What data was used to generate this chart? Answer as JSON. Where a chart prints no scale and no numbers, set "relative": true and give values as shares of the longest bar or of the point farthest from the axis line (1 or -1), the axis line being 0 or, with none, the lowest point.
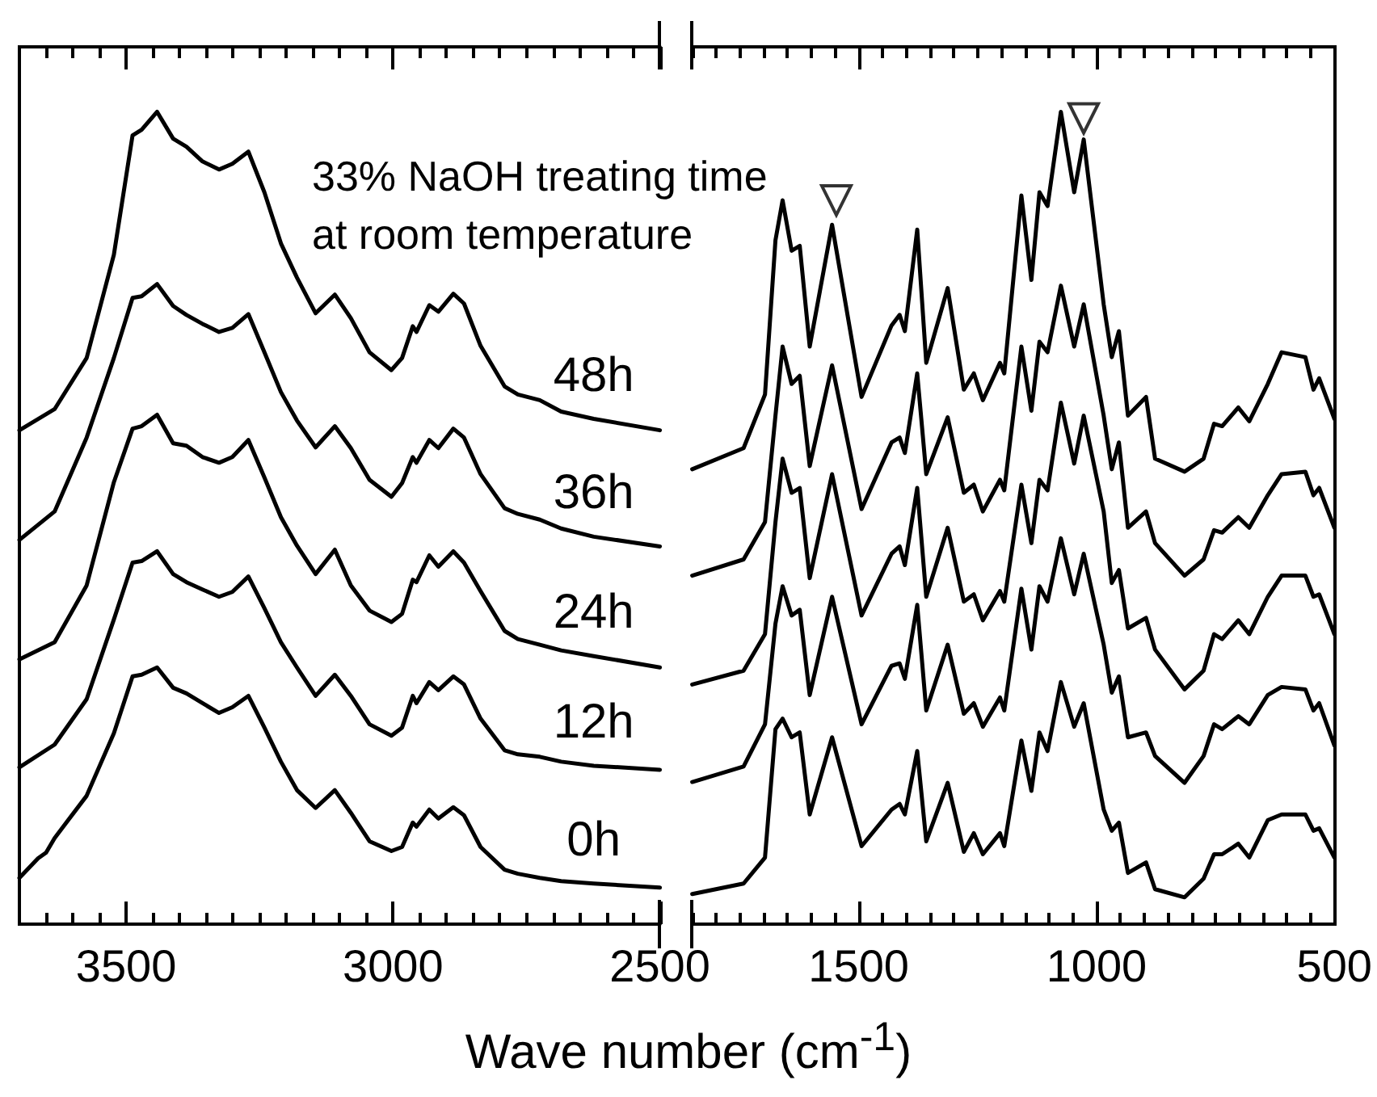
{
  "chart_data": [
    {
      "type": "line",
      "relative": true,
      "xlabel": "Wave number (cm$^{-1}$)",
      "annotations": [
        "33% NaOH treating time\nat room temperature"
      ],
      "xlim": [
        3700,
        2500
      ],
      "xticks": [
        3500,
        3000,
        2500
      ],
      "x": [
        3700,
        3634,
        3574,
        3523,
        3488,
        3471,
        3442,
        3412,
        3387,
        3357,
        3326,
        3301,
        3271,
        3241,
        3210,
        3180,
        3145,
        3109,
        3079,
        3044,
        3003,
        2983,
        2963,
        2956,
        2932,
        2915,
        2887,
        2867,
        2836,
        2791,
        2766,
        2725,
        2685,
        2624,
        2500
      ],
      "series": [
        {
          "name": "48h",
          "color": "#000000",
          "values": [
            0.608,
            0.634,
            0.697,
            0.824,
            0.971,
            0.978,
            1,
            0.967,
            0.957,
            0.939,
            0.929,
            0.936,
            0.951,
            0.901,
            0.838,
            0.796,
            0.752,
            0.775,
            0.746,
            0.704,
            0.682,
            0.697,
            0.736,
            0.729,
            0.762,
            0.754,
            0.776,
            0.764,
            0.712,
            0.662,
            0.652,
            0.645,
            0.631,
            0.622,
            0.608
          ]
        },
        {
          "name": "36h",
          "color": "#000000",
          "values": [
            0.473,
            0.508,
            0.599,
            0.697,
            0.771,
            0.773,
            0.788,
            0.761,
            0.75,
            0.739,
            0.729,
            0.734,
            0.751,
            0.704,
            0.655,
            0.62,
            0.587,
            0.613,
            0.586,
            0.547,
            0.526,
            0.543,
            0.575,
            0.568,
            0.596,
            0.586,
            0.61,
            0.599,
            0.554,
            0.512,
            0.505,
            0.498,
            0.487,
            0.477,
            0.465
          ]
        },
        {
          "name": "24h",
          "color": "#000000",
          "values": [
            0.326,
            0.347,
            0.417,
            0.544,
            0.61,
            0.613,
            0.627,
            0.592,
            0.589,
            0.575,
            0.568,
            0.575,
            0.596,
            0.55,
            0.501,
            0.466,
            0.431,
            0.461,
            0.417,
            0.386,
            0.372,
            0.382,
            0.424,
            0.421,
            0.454,
            0.44,
            0.459,
            0.445,
            0.41,
            0.361,
            0.351,
            0.344,
            0.337,
            0.33,
            0.316
          ]
        },
        {
          "name": "12h",
          "color": "#000000",
          "values": [
            0.193,
            0.221,
            0.277,
            0.375,
            0.445,
            0.447,
            0.459,
            0.431,
            0.421,
            0.412,
            0.403,
            0.409,
            0.428,
            0.389,
            0.347,
            0.316,
            0.281,
            0.307,
            0.281,
            0.246,
            0.232,
            0.242,
            0.281,
            0.272,
            0.298,
            0.288,
            0.305,
            0.295,
            0.253,
            0.214,
            0.209,
            0.206,
            0.2,
            0.195,
            0.19
          ]
        },
        {
          "name": "0h",
          "color": "#000000",
          "x": [
            3700,
            3665,
            3650,
            3634,
            3574,
            3523,
            3488,
            3471,
            3442,
            3412,
            3387,
            3357,
            3326,
            3301,
            3271,
            3241,
            3210,
            3180,
            3145,
            3109,
            3079,
            3044,
            3003,
            2983,
            2963,
            2956,
            2932,
            2915,
            2887,
            2867,
            2836,
            2791,
            2766,
            2725,
            2685,
            2624,
            2500
          ],
          "values": [
            0.057,
            0.081,
            0.088,
            0.106,
            0.158,
            0.235,
            0.305,
            0.307,
            0.316,
            0.291,
            0.284,
            0.272,
            0.26,
            0.267,
            0.281,
            0.242,
            0.2,
            0.165,
            0.143,
            0.165,
            0.137,
            0.102,
            0.09,
            0.095,
            0.125,
            0.12,
            0.141,
            0.13,
            0.144,
            0.134,
            0.095,
            0.067,
            0.062,
            0.057,
            0.053,
            0.05,
            0.045
          ]
        }
      ]
    },
    {
      "type": "line",
      "relative": true,
      "xlim": [
        1850,
        500
      ],
      "xticks": [
        1500,
        1000,
        500
      ],
      "x": [
        1850,
        1742,
        1697,
        1675,
        1660,
        1641,
        1624,
        1603,
        1556,
        1494,
        1431,
        1414,
        1403,
        1377,
        1358,
        1313,
        1279,
        1258,
        1239,
        1203,
        1194,
        1158,
        1137,
        1120,
        1103,
        1075,
        1047,
        1027,
        985,
        968,
        953,
        934,
        896,
        877,
        815,
        775,
        753,
        736,
        702,
        679,
        640,
        611,
        561,
        544,
        532,
        500
      ],
      "series": [
        {
          "color": "#000000",
          "values": [
            0.56,
            0.586,
            0.652,
            0.842,
            0.891,
            0.829,
            0.835,
            0.711,
            0.861,
            0.649,
            0.737,
            0.75,
            0.73,
            0.855,
            0.691,
            0.783,
            0.658,
            0.678,
            0.645,
            0.691,
            0.678,
            0.897,
            0.793,
            0.901,
            0.884,
            1.0,
            0.901,
            0.966,
            0.763,
            0.698,
            0.73,
            0.626,
            0.649,
            0.573,
            0.557,
            0.573,
            0.616,
            0.613,
            0.636,
            0.619,
            0.665,
            0.704,
            0.698,
            0.658,
            0.672,
            0.622
          ]
        },
        {
          "color": "#000000",
          "values": [
            0.429,
            0.449,
            0.495,
            0.626,
            0.711,
            0.665,
            0.675,
            0.564,
            0.688,
            0.511,
            0.593,
            0.599,
            0.58,
            0.678,
            0.554,
            0.624,
            0.531,
            0.541,
            0.508,
            0.547,
            0.534,
            0.711,
            0.632,
            0.717,
            0.704,
            0.786,
            0.711,
            0.763,
            0.626,
            0.56,
            0.593,
            0.488,
            0.508,
            0.469,
            0.429,
            0.449,
            0.485,
            0.482,
            0.501,
            0.488,
            0.528,
            0.554,
            0.557,
            0.528,
            0.537,
            0.488
          ]
        },
        {
          "color": "#000000",
          "values": [
            0.295,
            0.312,
            0.357,
            0.495,
            0.573,
            0.531,
            0.537,
            0.426,
            0.554,
            0.38,
            0.456,
            0.465,
            0.442,
            0.537,
            0.403,
            0.488,
            0.397,
            0.406,
            0.374,
            0.41,
            0.397,
            0.541,
            0.469,
            0.547,
            0.534,
            0.642,
            0.567,
            0.626,
            0.508,
            0.42,
            0.436,
            0.364,
            0.377,
            0.338,
            0.289,
            0.312,
            0.357,
            0.351,
            0.374,
            0.357,
            0.403,
            0.429,
            0.429,
            0.403,
            0.406,
            0.357
          ]
        },
        {
          "color": "#000000",
          "values": [
            0.175,
            0.194,
            0.246,
            0.37,
            0.416,
            0.38,
            0.387,
            0.282,
            0.403,
            0.246,
            0.318,
            0.321,
            0.302,
            0.393,
            0.263,
            0.344,
            0.259,
            0.272,
            0.243,
            0.279,
            0.263,
            0.413,
            0.338,
            0.416,
            0.397,
            0.475,
            0.406,
            0.456,
            0.344,
            0.285,
            0.305,
            0.23,
            0.236,
            0.207,
            0.174,
            0.207,
            0.246,
            0.24,
            0.256,
            0.246,
            0.282,
            0.292,
            0.289,
            0.263,
            0.272,
            0.22
          ]
        },
        {
          "color": "#000000",
          "values": [
            0.037,
            0.05,
            0.082,
            0.24,
            0.253,
            0.23,
            0.236,
            0.135,
            0.23,
            0.096,
            0.141,
            0.148,
            0.135,
            0.213,
            0.102,
            0.174,
            0.089,
            0.112,
            0.086,
            0.112,
            0.096,
            0.226,
            0.164,
            0.236,
            0.213,
            0.298,
            0.243,
            0.272,
            0.141,
            0.115,
            0.125,
            0.063,
            0.076,
            0.043,
            0.033,
            0.056,
            0.086,
            0.086,
            0.099,
            0.082,
            0.128,
            0.135,
            0.135,
            0.115,
            0.118,
            0.082
          ]
        },
        {
          "type": "scatter",
          "marker": "triangle",
          "color": "#000000",
          "x": [
            1547,
            1027
          ],
          "values": [
            0.891,
            0.992
          ]
        }
      ]
    }
  ]
}
